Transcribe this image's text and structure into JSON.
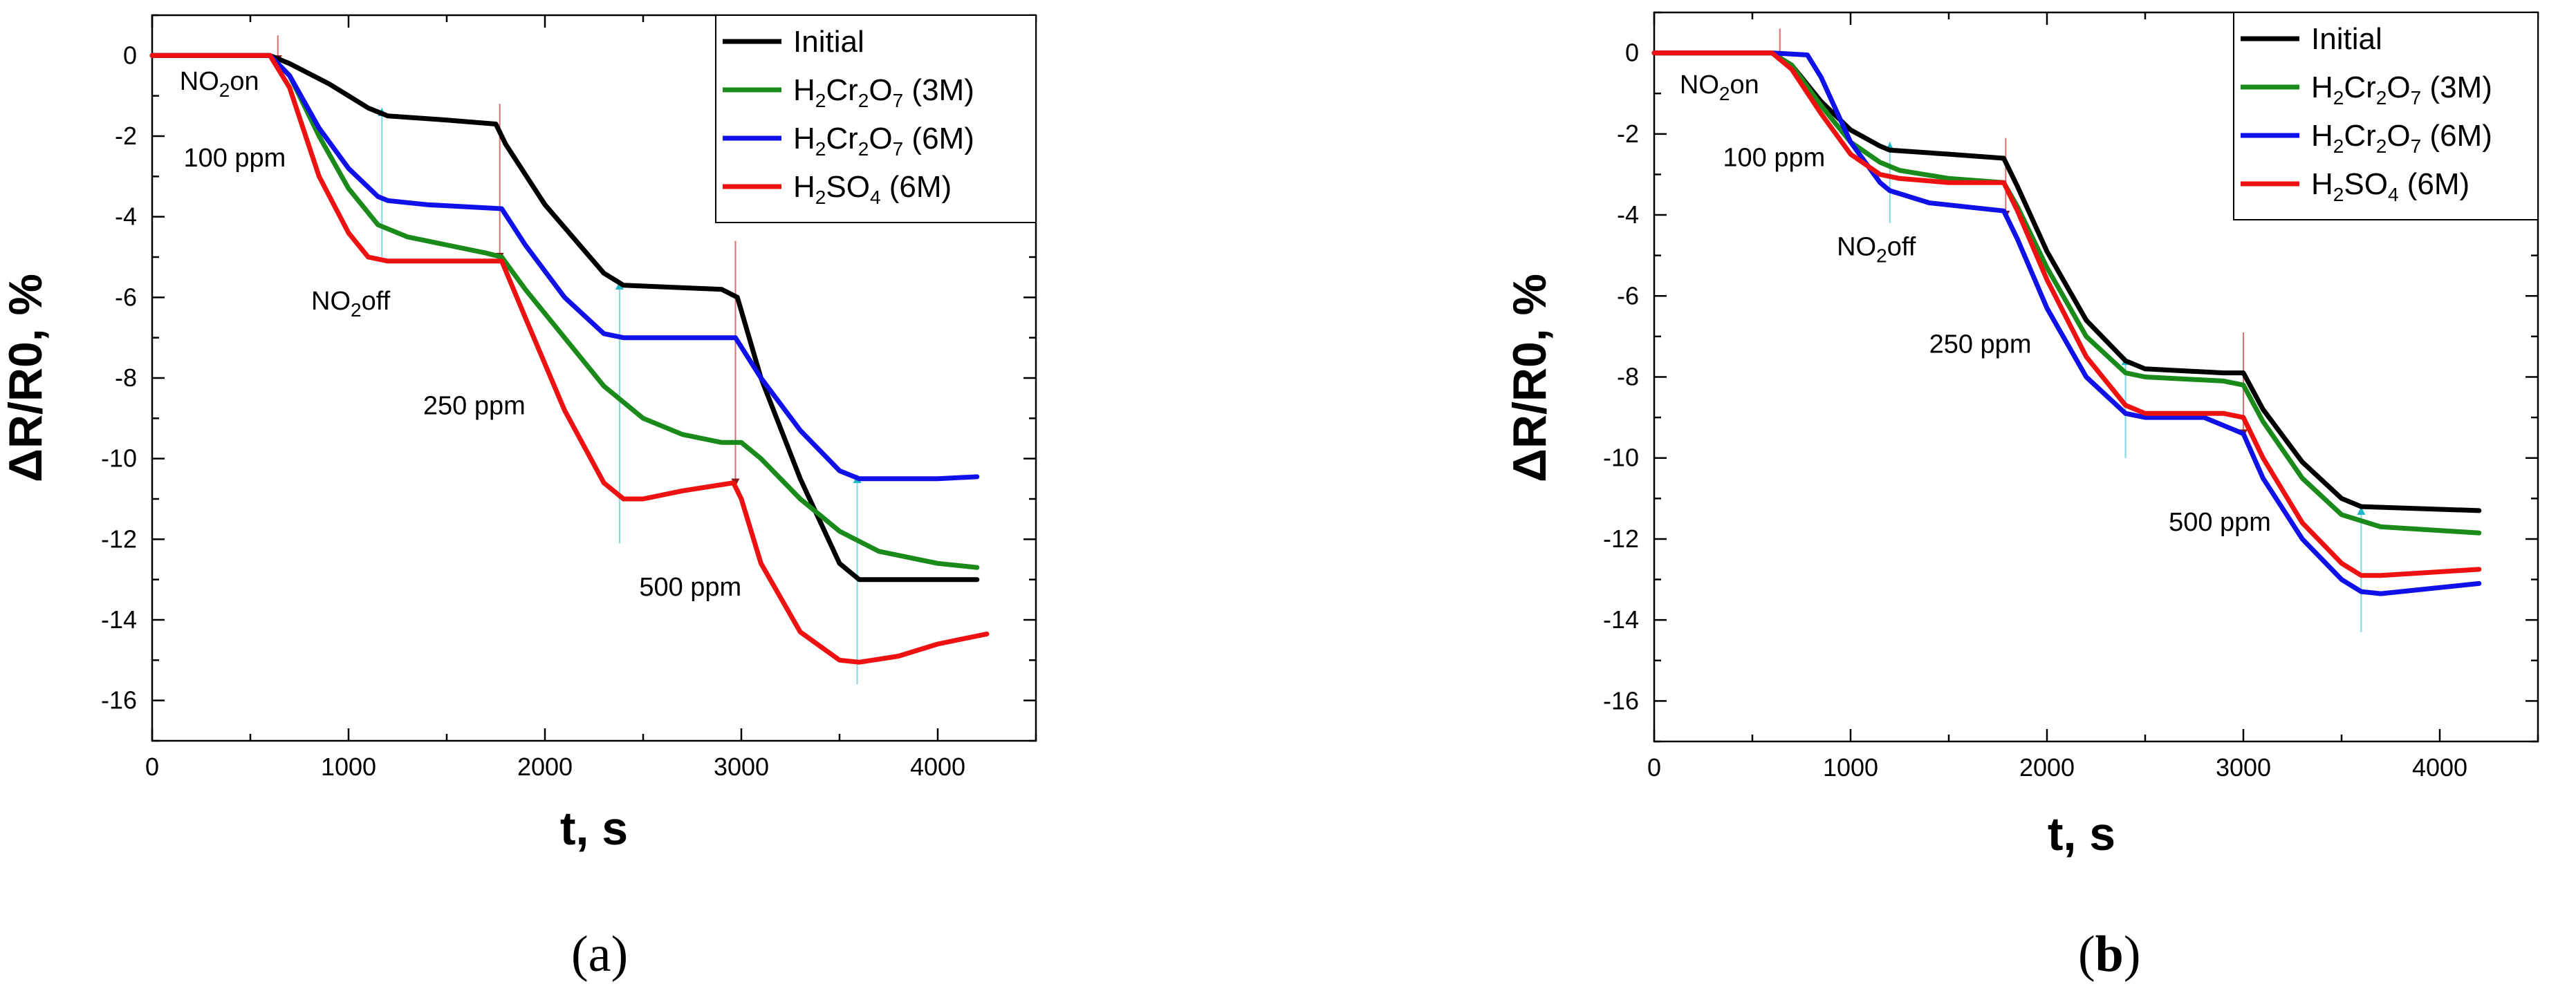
{
  "chart_data": [
    {
      "panel_label": "a",
      "type": "line",
      "xlabel": "t, s",
      "ylabel": "ΔR/R0, %",
      "xlim": [
        0,
        4500
      ],
      "ylim": [
        -17,
        1
      ],
      "xticks": [
        0,
        1000,
        2000,
        3000,
        4000
      ],
      "yticks": [
        0,
        -2,
        -4,
        -6,
        -8,
        -10,
        -12,
        -14,
        -16
      ],
      "legend": {
        "position": "top-right"
      },
      "series": [
        {
          "name": "Initial",
          "name_parts": [
            {
              "t": "Initial"
            }
          ],
          "color": "#000000",
          "x": [
            0,
            600,
            700,
            900,
            1100,
            1200,
            1500,
            1750,
            1800,
            2000,
            2300,
            2400,
            2900,
            2980,
            3100,
            3300,
            3500,
            3600,
            4200
          ],
          "y": [
            0,
            0,
            -0.2,
            -0.7,
            -1.3,
            -1.5,
            -1.6,
            -1.7,
            -2.2,
            -3.7,
            -5.4,
            -5.7,
            -5.8,
            -6.0,
            -8.0,
            -10.5,
            -12.6,
            -13.0,
            -13.0
          ]
        },
        {
          "name": "H2Cr2O7 (3M)",
          "name_parts": [
            {
              "t": "H"
            },
            {
              "t": "2",
              "sub": true
            },
            {
              "t": "Cr"
            },
            {
              "t": "2",
              "sub": true
            },
            {
              "t": "O"
            },
            {
              "t": "7",
              "sub": true
            },
            {
              "t": " (3M)"
            }
          ],
          "color": "#1a8a1a",
          "x": [
            0,
            600,
            700,
            850,
            1000,
            1150,
            1300,
            1500,
            1700,
            1780,
            1900,
            2100,
            2300,
            2500,
            2700,
            2900,
            3000,
            3100,
            3300,
            3500,
            3700,
            4000,
            4200
          ],
          "y": [
            0,
            0,
            -0.5,
            -2.0,
            -3.3,
            -4.2,
            -4.5,
            -4.7,
            -4.9,
            -5.0,
            -5.8,
            -7.0,
            -8.2,
            -9.0,
            -9.4,
            -9.6,
            -9.6,
            -10.0,
            -11.0,
            -11.8,
            -12.3,
            -12.6,
            -12.7
          ]
        },
        {
          "name": "H2Cr2O7 (6M)",
          "name_parts": [
            {
              "t": "H"
            },
            {
              "t": "2",
              "sub": true
            },
            {
              "t": "Cr"
            },
            {
              "t": "2",
              "sub": true
            },
            {
              "t": "O"
            },
            {
              "t": "7",
              "sub": true
            },
            {
              "t": " (6M)"
            }
          ],
          "color": "#1010e8",
          "x": [
            0,
            600,
            700,
            850,
            1000,
            1150,
            1200,
            1400,
            1780,
            1900,
            2100,
            2300,
            2400,
            2700,
            2970,
            3100,
            3300,
            3500,
            3600,
            3800,
            4000,
            4200
          ],
          "y": [
            0,
            0,
            -0.5,
            -1.8,
            -2.8,
            -3.5,
            -3.6,
            -3.7,
            -3.8,
            -4.7,
            -6.0,
            -6.9,
            -7.0,
            -7.0,
            -7.0,
            -8.0,
            -9.3,
            -10.3,
            -10.5,
            -10.5,
            -10.5,
            -10.45
          ]
        },
        {
          "name": "H2SO4 (6M)",
          "name_parts": [
            {
              "t": "H"
            },
            {
              "t": "2",
              "sub": true
            },
            {
              "t": "SO"
            },
            {
              "t": "4",
              "sub": true
            },
            {
              "t": " (6M)"
            }
          ],
          "color": "#ee1111",
          "x": [
            0,
            600,
            700,
            850,
            1000,
            1100,
            1200,
            1500,
            1780,
            1900,
            2100,
            2300,
            2400,
            2500,
            2700,
            2960,
            3000,
            3100,
            3300,
            3500,
            3600,
            3800,
            4000,
            4250
          ],
          "y": [
            0,
            0,
            -0.8,
            -3.0,
            -4.4,
            -5.0,
            -5.1,
            -5.1,
            -5.1,
            -6.5,
            -8.8,
            -10.6,
            -11.0,
            -11.0,
            -10.8,
            -10.6,
            -11.0,
            -12.6,
            -14.3,
            -15.0,
            -15.05,
            -14.9,
            -14.6,
            -14.35
          ]
        }
      ],
      "annotations": [
        {
          "text_parts": [
            {
              "t": "NO"
            },
            {
              "t": "2",
              "sub": true
            },
            {
              "t": "on"
            }
          ],
          "x": 140,
          "y": -0.85
        },
        {
          "text_parts": [
            {
              "t": "100 ppm"
            }
          ],
          "x": 160,
          "y": -2.75
        },
        {
          "text_parts": [
            {
              "t": "NO"
            },
            {
              "t": "2",
              "sub": true
            },
            {
              "t": "off"
            }
          ],
          "x": 810,
          "y": -6.3
        },
        {
          "text_parts": [
            {
              "t": "250 ppm"
            }
          ],
          "x": 1380,
          "y": -8.9
        },
        {
          "text_parts": [
            {
              "t": "500 ppm"
            }
          ],
          "x": 2480,
          "y": -13.4
        }
      ],
      "markers": [
        {
          "kind": "on",
          "x": 640,
          "y_top": 0.5,
          "y_bottom": -0.2
        },
        {
          "kind": "off",
          "x": 1170,
          "y_top": -1.3,
          "y_bottom": -5.0
        },
        {
          "kind": "on",
          "x": 1770,
          "y_top": -1.2,
          "y_bottom": -5.1
        },
        {
          "kind": "off",
          "x": 2380,
          "y_top": -5.6,
          "y_bottom": -12.1
        },
        {
          "kind": "on",
          "x": 2970,
          "y_top": -4.6,
          "y_bottom": -10.7
        },
        {
          "kind": "off",
          "x": 3590,
          "y_top": -10.4,
          "y_bottom": -15.6
        }
      ]
    },
    {
      "panel_label": "b",
      "type": "line",
      "xlabel": "t, s",
      "ylabel": "ΔR/R0, %",
      "xlim": [
        0,
        4500
      ],
      "ylim": [
        -17,
        1
      ],
      "xticks": [
        0,
        1000,
        2000,
        3000,
        4000
      ],
      "yticks": [
        0,
        -2,
        -4,
        -6,
        -8,
        -10,
        -12,
        -14,
        -16
      ],
      "legend": {
        "position": "top-right"
      },
      "series": [
        {
          "name": "Initial",
          "name_parts": [
            {
              "t": "Initial"
            }
          ],
          "color": "#000000",
          "x": [
            0,
            600,
            700,
            850,
            1000,
            1150,
            1200,
            1500,
            1780,
            1850,
            2000,
            2200,
            2400,
            2500,
            2900,
            3000,
            3100,
            3300,
            3500,
            3600,
            4200
          ],
          "y": [
            0,
            0,
            -0.3,
            -1.2,
            -1.9,
            -2.3,
            -2.4,
            -2.5,
            -2.6,
            -3.3,
            -4.9,
            -6.6,
            -7.6,
            -7.8,
            -7.9,
            -7.9,
            -8.8,
            -10.1,
            -11.0,
            -11.2,
            -11.3
          ]
        },
        {
          "name": "H2Cr2O7 (3M)",
          "name_parts": [
            {
              "t": "H"
            },
            {
              "t": "2",
              "sub": true
            },
            {
              "t": "Cr"
            },
            {
              "t": "2",
              "sub": true
            },
            {
              "t": "O"
            },
            {
              "t": "7",
              "sub": true
            },
            {
              "t": " (3M)"
            }
          ],
          "color": "#1a8a1a",
          "x": [
            0,
            600,
            700,
            850,
            1000,
            1150,
            1250,
            1500,
            1780,
            1850,
            2000,
            2200,
            2400,
            2500,
            2900,
            3000,
            3100,
            3300,
            3500,
            3700,
            4200
          ],
          "y": [
            0,
            0,
            -0.3,
            -1.3,
            -2.2,
            -2.7,
            -2.9,
            -3.1,
            -3.2,
            -3.8,
            -5.3,
            -7.0,
            -7.9,
            -8.0,
            -8.1,
            -8.2,
            -9.1,
            -10.5,
            -11.4,
            -11.7,
            -11.85
          ]
        },
        {
          "name": "H2Cr2O7 (6M)",
          "name_parts": [
            {
              "t": "H"
            },
            {
              "t": "2",
              "sub": true
            },
            {
              "t": "Cr"
            },
            {
              "t": "2",
              "sub": true
            },
            {
              "t": "O"
            },
            {
              "t": "7",
              "sub": true
            },
            {
              "t": " (6M)"
            }
          ],
          "color": "#1010e8",
          "x": [
            0,
            600,
            780,
            850,
            1000,
            1150,
            1200,
            1400,
            1780,
            1850,
            2000,
            2200,
            2400,
            2500,
            2800,
            2950,
            3000,
            3100,
            3300,
            3500,
            3600,
            3700,
            4200
          ],
          "y": [
            0,
            0,
            -0.05,
            -0.6,
            -2.2,
            -3.2,
            -3.4,
            -3.7,
            -3.9,
            -4.6,
            -6.3,
            -8.0,
            -8.9,
            -9.0,
            -9.0,
            -9.3,
            -9.4,
            -10.5,
            -12.0,
            -13.0,
            -13.3,
            -13.35,
            -13.1
          ]
        },
        {
          "name": "H2SO4 (6M)",
          "name_parts": [
            {
              "t": "H"
            },
            {
              "t": "2",
              "sub": true
            },
            {
              "t": "SO"
            },
            {
              "t": "4",
              "sub": true
            },
            {
              "t": " (6M)"
            }
          ],
          "color": "#ee1111",
          "x": [
            0,
            600,
            700,
            850,
            1000,
            1150,
            1250,
            1500,
            1780,
            1850,
            2000,
            2200,
            2400,
            2500,
            2900,
            3000,
            3100,
            3300,
            3500,
            3600,
            3700,
            4200
          ],
          "y": [
            0,
            0,
            -0.4,
            -1.5,
            -2.5,
            -3.0,
            -3.1,
            -3.2,
            -3.2,
            -3.9,
            -5.6,
            -7.5,
            -8.7,
            -8.9,
            -8.9,
            -9.0,
            -10.0,
            -11.6,
            -12.6,
            -12.9,
            -12.9,
            -12.75
          ]
        }
      ],
      "annotations": [
        {
          "text_parts": [
            {
              "t": "NO"
            },
            {
              "t": "2",
              "sub": true
            },
            {
              "t": "on"
            }
          ],
          "x": 130,
          "y": -1.0
        },
        {
          "text_parts": [
            {
              "t": "100 ppm"
            }
          ],
          "x": 350,
          "y": -2.8
        },
        {
          "text_parts": [
            {
              "t": "NO"
            },
            {
              "t": "2",
              "sub": true
            },
            {
              "t": "off"
            }
          ],
          "x": 930,
          "y": -5.0
        },
        {
          "text_parts": [
            {
              "t": "250 ppm"
            }
          ],
          "x": 1400,
          "y": -7.4
        },
        {
          "text_parts": [
            {
              "t": "500 ppm"
            }
          ],
          "x": 2620,
          "y": -11.8
        }
      ],
      "markers": [
        {
          "kind": "on",
          "x": 640,
          "y_top": 0.6,
          "y_bottom": -0.2
        },
        {
          "kind": "off",
          "x": 1200,
          "y_top": -2.2,
          "y_bottom": -4.2
        },
        {
          "kind": "on",
          "x": 1790,
          "y_top": -2.1,
          "y_bottom": -4.1
        },
        {
          "kind": "off",
          "x": 2400,
          "y_top": -7.5,
          "y_bottom": -10.0
        },
        {
          "kind": "on",
          "x": 3000,
          "y_top": -6.9,
          "y_bottom": -9.5
        },
        {
          "kind": "off",
          "x": 3600,
          "y_top": -11.2,
          "y_bottom": -14.3
        }
      ]
    }
  ]
}
